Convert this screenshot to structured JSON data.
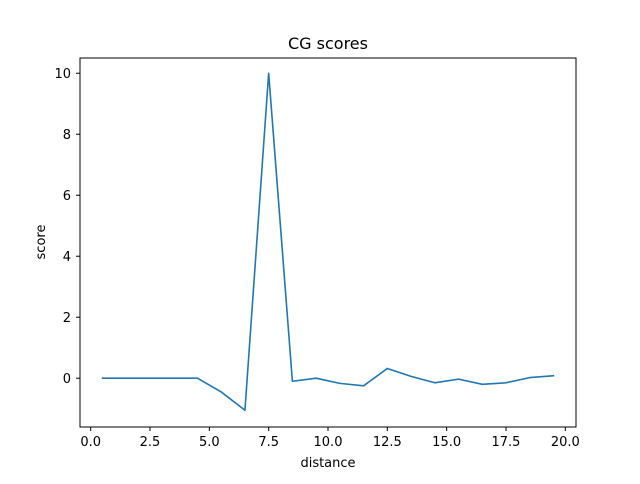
{
  "chart_data": {
    "type": "line",
    "title": "CG scores",
    "xlabel": "distance",
    "ylabel": "score",
    "xlim": [
      -0.45,
      20.45
    ],
    "ylim": [
      -1.6,
      10.5
    ],
    "grid": false,
    "colors": {
      "series": "#1f77b4",
      "axis": "#000000",
      "background": "#ffffff"
    },
    "xticks": [
      0.0,
      2.5,
      5.0,
      7.5,
      10.0,
      12.5,
      15.0,
      17.5,
      20.0
    ],
    "xtick_labels": [
      "0.0",
      "2.5",
      "5.0",
      "7.5",
      "10.0",
      "12.5",
      "15.0",
      "17.5",
      "20.0"
    ],
    "yticks": [
      0,
      2,
      4,
      6,
      8,
      10
    ],
    "ytick_labels": [
      "0",
      "2",
      "4",
      "6",
      "8",
      "10"
    ],
    "series": [
      {
        "x": [
          0.5,
          1.5,
          2.5,
          3.5,
          4.5,
          5.5,
          6.5,
          7.5,
          8.5,
          9.5,
          10.5,
          11.5,
          12.5,
          13.5,
          14.5,
          15.5,
          16.5,
          17.5,
          18.5,
          19.5
        ],
        "y": [
          0.0,
          0.0,
          0.0,
          0.0,
          0.0,
          -0.45,
          -1.05,
          10.0,
          -0.1,
          0.0,
          -0.17,
          -0.25,
          0.32,
          0.06,
          -0.15,
          -0.03,
          -0.2,
          -0.15,
          0.02,
          0.08
        ]
      }
    ]
  }
}
